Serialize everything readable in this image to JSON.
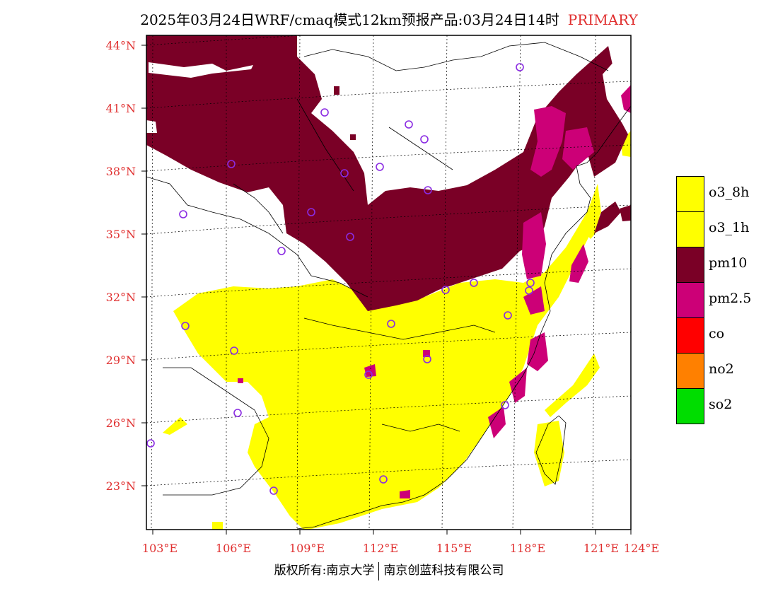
{
  "title": {
    "main": "2025年03月24日WRF/cmaq模式12km预报产品:03月24日14时",
    "tag": "PRIMARY"
  },
  "axes": {
    "lat_labels": [
      "44°N",
      "41°N",
      "38°N",
      "35°N",
      "32°N",
      "29°N",
      "26°N",
      "23°N"
    ],
    "lon_labels": [
      "103°E",
      "106°E",
      "109°E",
      "112°E",
      "115°E",
      "118°E",
      "121°E",
      "124°E"
    ]
  },
  "copyright": {
    "left": "版权所有:南京大学",
    "right": "南京创蓝科技有限公司"
  },
  "legend": [
    {
      "label": "o3_8h",
      "color": "#ffff00"
    },
    {
      "label": "o3_1h",
      "color": "#ffff00"
    },
    {
      "label": "pm10",
      "color": "#7a0026"
    },
    {
      "label": "pm2.5",
      "color": "#cc0077"
    },
    {
      "label": "co",
      "color": "#ff0000"
    },
    {
      "label": "no2",
      "color": "#ff8000"
    },
    {
      "label": "so2",
      "color": "#00dd00"
    }
  ],
  "colors": {
    "pm10": "#7a0026",
    "pm25": "#cc0077",
    "o3": "#ffff00",
    "label": "#e03030",
    "station": "#8a2be2"
  },
  "stations_count": 27
}
